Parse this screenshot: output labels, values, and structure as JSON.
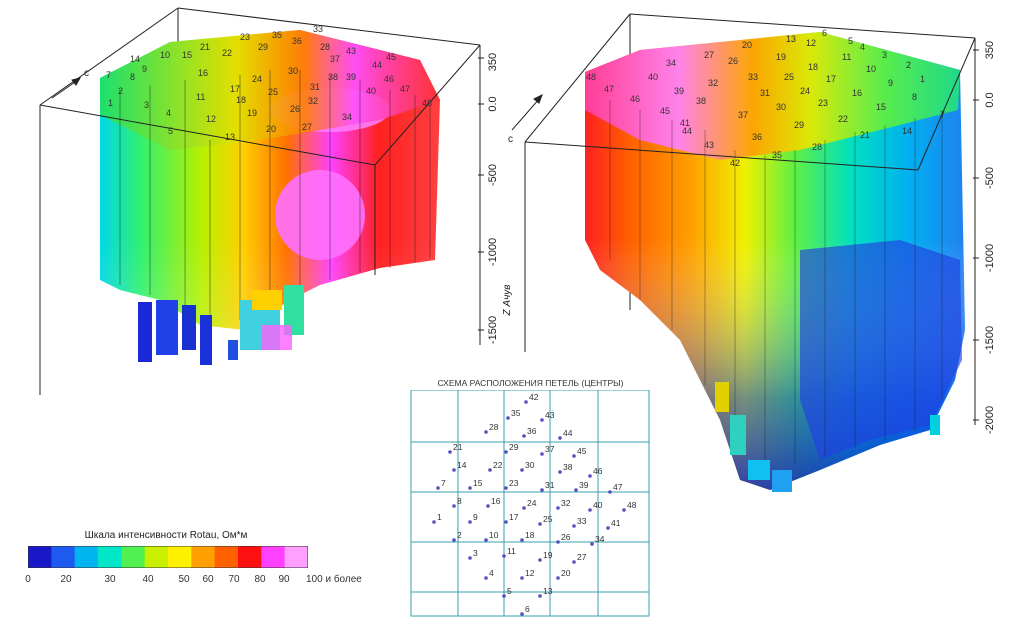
{
  "left_plot": {
    "z_axis_label": "Z Ачув",
    "z_ticks": [
      "350",
      "0.0",
      "-500",
      "-1000",
      "-1500"
    ],
    "arrow_label": "c",
    "loop_labels": [
      "33",
      "36",
      "29",
      "21",
      "35",
      "23",
      "28",
      "22",
      "15",
      "16",
      "10",
      "9",
      "14",
      "7",
      "8",
      "2",
      "1",
      "3",
      "24",
      "30",
      "37",
      "43",
      "17",
      "11",
      "4",
      "12",
      "5",
      "18",
      "25",
      "13",
      "38",
      "31",
      "39",
      "44",
      "45",
      "46",
      "19",
      "26",
      "32",
      "40",
      "47",
      "48",
      "20",
      "27",
      "34"
    ]
  },
  "right_plot": {
    "z_ticks": [
      "350",
      "0.0",
      "-500",
      "-1000",
      "-1500",
      "-2000"
    ],
    "arrow_label": "c",
    "loop_labels": [
      "42",
      "43",
      "35",
      "36",
      "37",
      "28",
      "29",
      "30",
      "31",
      "21",
      "22",
      "23",
      "24",
      "25",
      "14",
      "15",
      "16",
      "17",
      "18",
      "19",
      "7",
      "8",
      "9",
      "10",
      "11",
      "12",
      "1",
      "2",
      "3",
      "4",
      "5",
      "6",
      "13",
      "20",
      "26",
      "27",
      "32",
      "33",
      "34",
      "38",
      "39",
      "40",
      "41",
      "44",
      "45",
      "46",
      "47",
      "48"
    ]
  },
  "legend": {
    "title": "Шкала интенсивности Rotau, Ом*м",
    "ticks": [
      "0",
      "20",
      "30",
      "40",
      "50",
      "60",
      "70",
      "80",
      "90",
      "100 и более"
    ],
    "colors": [
      "#1818c8",
      "#1e5af0",
      "#00b4f0",
      "#00e6c8",
      "#50f050",
      "#c8f000",
      "#fff000",
      "#ffa000",
      "#ff6000",
      "#ff1010",
      "#ff40ff",
      "#ffa0ff"
    ]
  },
  "scheme": {
    "title": "СХЕМА РАСПОЛОЖЕНИЯ ПЕТЕЛЬ (ЦЕНТРЫ)",
    "points": [
      "42",
      "35",
      "43",
      "28",
      "36",
      "44",
      "21",
      "29",
      "37",
      "45",
      "14",
      "22",
      "30",
      "38",
      "46",
      "7",
      "15",
      "23",
      "31",
      "39",
      "47",
      "8",
      "16",
      "24",
      "32",
      "40",
      "48",
      "1",
      "9",
      "17",
      "25",
      "33",
      "41",
      "2",
      "10",
      "18",
      "26",
      "34",
      "3",
      "11",
      "19",
      "27",
      "4",
      "12",
      "20",
      "5",
      "13",
      "6"
    ]
  }
}
